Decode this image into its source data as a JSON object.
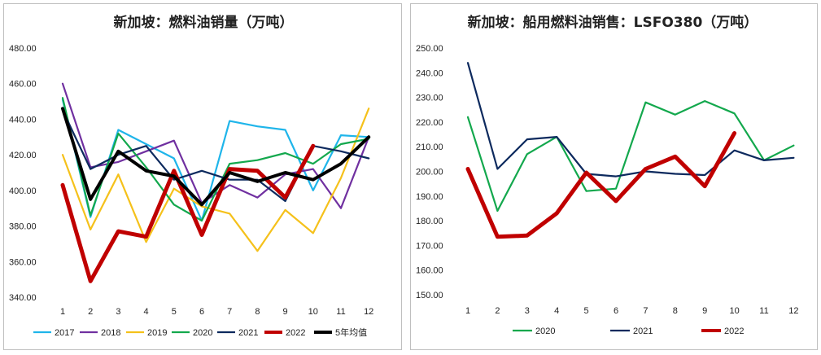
{
  "chart_data": [
    {
      "type": "line",
      "title": "新加坡：燃料油销量（万吨）",
      "x": [
        "1",
        "2",
        "3",
        "4",
        "5",
        "6",
        "7",
        "8",
        "9",
        "10",
        "11",
        "12"
      ],
      "y_ticks": [
        "480.00",
        "460.00",
        "440.00",
        "420.00",
        "400.00",
        "380.00",
        "360.00",
        "340.00"
      ],
      "ylim": [
        340,
        480
      ],
      "grid": false,
      "legend_position": "bottom",
      "series": [
        {
          "name": "2017",
          "color": "#1fb5ea",
          "width": 2.2,
          "values": [
            451,
            385,
            434,
            426,
            418,
            383,
            439,
            436,
            434,
            400,
            431,
            430
          ]
        },
        {
          "name": "2018",
          "color": "#7030a0",
          "width": 2.2,
          "values": [
            460,
            413,
            416,
            422,
            428,
            393,
            403,
            396,
            409,
            412,
            390,
            430
          ]
        },
        {
          "name": "2019",
          "color": "#f5c11b",
          "width": 2.2,
          "values": [
            420,
            378,
            409,
            371,
            401,
            391,
            387,
            366,
            389,
            376,
            407,
            446
          ]
        },
        {
          "name": "2020",
          "color": "#13a84d",
          "width": 2.2,
          "values": [
            452,
            386,
            432,
            413,
            392,
            383,
            415,
            417,
            421,
            415,
            426,
            429
          ]
        },
        {
          "name": "2021",
          "color": "#0d2a5e",
          "width": 2.2,
          "values": [
            445,
            412,
            420,
            425,
            406,
            411,
            406,
            406,
            394,
            425,
            422,
            418
          ]
        },
        {
          "name": "2022",
          "color": "#c00000",
          "width": 5,
          "values": [
            403,
            349,
            377,
            374,
            411,
            375,
            412,
            411,
            396,
            425,
            null,
            null
          ]
        },
        {
          "name": "5年均值",
          "color": "#000000",
          "width": 4,
          "values": [
            446,
            395,
            422,
            411,
            408,
            392,
            410,
            405,
            410,
            406,
            415,
            430
          ]
        }
      ]
    },
    {
      "type": "line",
      "title": "新加坡：船用燃料油销售：LSFO380（万吨）",
      "x": [
        "1",
        "2",
        "3",
        "4",
        "5",
        "6",
        "7",
        "8",
        "9",
        "10",
        "11",
        "12"
      ],
      "y_ticks": [
        "250.00",
        "240.00",
        "230.00",
        "220.00",
        "210.00",
        "200.00",
        "190.00",
        "180.00",
        "170.00",
        "160.00",
        "150.00"
      ],
      "ylim": [
        150,
        250
      ],
      "grid": false,
      "legend_position": "bottom",
      "series": [
        {
          "name": "2020",
          "color": "#13a84d",
          "width": 2.2,
          "values": [
            222,
            184,
            207,
            214,
            192,
            193,
            228,
            223,
            228.5,
            223.5,
            204.5,
            210.5
          ]
        },
        {
          "name": "2021",
          "color": "#0d2a5e",
          "width": 2.2,
          "values": [
            244,
            201,
            213,
            214,
            199,
            198,
            200,
            199,
            198.5,
            208.5,
            204.5,
            205.5
          ]
        },
        {
          "name": "2022",
          "color": "#c00000",
          "width": 5,
          "values": [
            201,
            173.5,
            174,
            183,
            199.5,
            188,
            201,
            206,
            194,
            215.5,
            null,
            null
          ]
        }
      ]
    }
  ]
}
